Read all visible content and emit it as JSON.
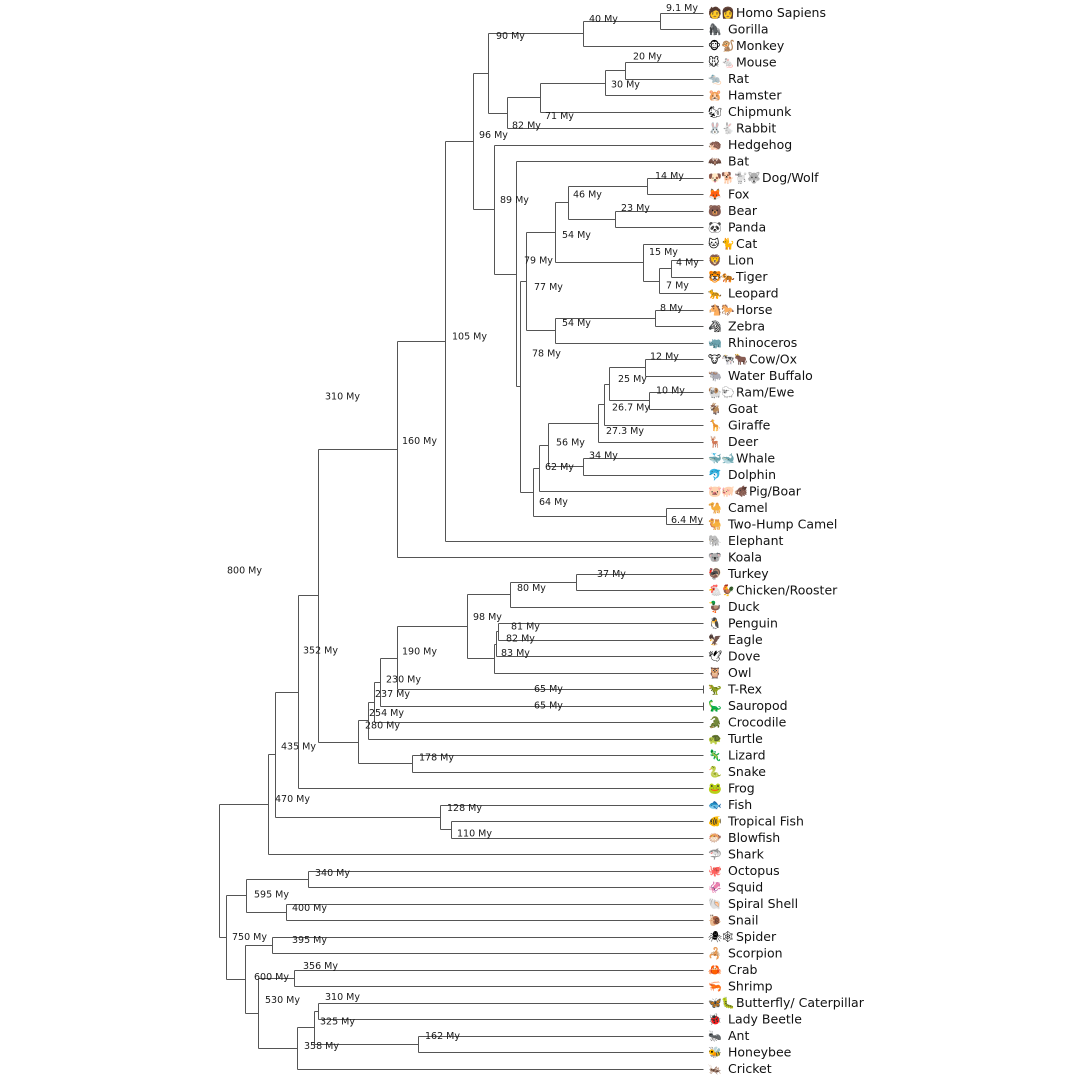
{
  "chart_data": {
    "type": "tree",
    "units": "My",
    "leaves": [
      {
        "id": "homo",
        "label": "Homo Sapiens",
        "icons": [
          "🧑",
          "👩"
        ]
      },
      {
        "id": "gorilla",
        "label": "Gorilla",
        "icons": [
          "🦍"
        ]
      },
      {
        "id": "monkey",
        "label": "Monkey",
        "icons": [
          "🐵",
          "🐒"
        ]
      },
      {
        "id": "mouse",
        "label": "Mouse",
        "icons": [
          "🐭",
          "🐁"
        ]
      },
      {
        "id": "rat",
        "label": "Rat",
        "icons": [
          "🐀"
        ]
      },
      {
        "id": "hamster",
        "label": "Hamster",
        "icons": [
          "🐹"
        ]
      },
      {
        "id": "chipmunk",
        "label": "Chipmunk",
        "icons": [
          "🐿"
        ]
      },
      {
        "id": "rabbit",
        "label": "Rabbit",
        "icons": [
          "🐰",
          "🐇"
        ]
      },
      {
        "id": "hedgehog",
        "label": "Hedgehog",
        "icons": [
          "🦔"
        ]
      },
      {
        "id": "bat",
        "label": "Bat",
        "icons": [
          "🦇"
        ]
      },
      {
        "id": "dog",
        "label": "Dog/Wolf",
        "icons": [
          "🐶",
          "🐕",
          "🐩",
          "🐺"
        ]
      },
      {
        "id": "fox",
        "label": "Fox",
        "icons": [
          "🦊"
        ]
      },
      {
        "id": "bear",
        "label": "Bear",
        "icons": [
          "🐻"
        ]
      },
      {
        "id": "panda",
        "label": "Panda",
        "icons": [
          "🐼"
        ]
      },
      {
        "id": "cat",
        "label": "Cat",
        "icons": [
          "🐱",
          "🐈"
        ]
      },
      {
        "id": "lion",
        "label": "Lion",
        "icons": [
          "🦁"
        ]
      },
      {
        "id": "tiger",
        "label": "Tiger",
        "icons": [
          "🐯",
          "🐅"
        ]
      },
      {
        "id": "leopard",
        "label": "Leopard",
        "icons": [
          "🐆"
        ]
      },
      {
        "id": "horse",
        "label": "Horse",
        "icons": [
          "🐴",
          "🐎"
        ]
      },
      {
        "id": "zebra",
        "label": "Zebra",
        "icons": [
          "🦓"
        ]
      },
      {
        "id": "rhino",
        "label": "Rhinoceros",
        "icons": [
          "🦏"
        ]
      },
      {
        "id": "cow",
        "label": "Cow/Ox",
        "icons": [
          "🐮",
          "🐄",
          "🐂"
        ]
      },
      {
        "id": "buffalo",
        "label": "Water Buffalo",
        "icons": [
          "🐃"
        ]
      },
      {
        "id": "ram",
        "label": "Ram/Ewe",
        "icons": [
          "🐏",
          "🐑"
        ]
      },
      {
        "id": "goat",
        "label": "Goat",
        "icons": [
          "🐐"
        ]
      },
      {
        "id": "giraffe",
        "label": "Giraffe",
        "icons": [
          "🦒"
        ]
      },
      {
        "id": "deer",
        "label": "Deer",
        "icons": [
          "🦌"
        ]
      },
      {
        "id": "whale",
        "label": "Whale",
        "icons": [
          "🐳",
          "🐋"
        ]
      },
      {
        "id": "dolphin",
        "label": "Dolphin",
        "icons": [
          "🐬"
        ]
      },
      {
        "id": "pig",
        "label": "Pig/Boar",
        "icons": [
          "🐷",
          "🐖",
          "🐗"
        ]
      },
      {
        "id": "camel",
        "label": "Camel",
        "icons": [
          "🐪"
        ]
      },
      {
        "id": "camel2",
        "label": "Two-Hump Camel",
        "icons": [
          "🐫"
        ]
      },
      {
        "id": "elephant",
        "label": "Elephant",
        "icons": [
          "🐘"
        ]
      },
      {
        "id": "koala",
        "label": "Koala",
        "icons": [
          "🐨"
        ]
      },
      {
        "id": "turkey",
        "label": "Turkey",
        "icons": [
          "🦃"
        ]
      },
      {
        "id": "chicken",
        "label": "Chicken/Rooster",
        "icons": [
          "🐔",
          "🐓"
        ]
      },
      {
        "id": "duck",
        "label": "Duck",
        "icons": [
          "🦆"
        ]
      },
      {
        "id": "penguin",
        "label": "Penguin",
        "icons": [
          "🐧"
        ]
      },
      {
        "id": "eagle",
        "label": "Eagle",
        "icons": [
          "🦅"
        ]
      },
      {
        "id": "dove",
        "label": "Dove",
        "icons": [
          "🕊"
        ]
      },
      {
        "id": "owl",
        "label": "Owl",
        "icons": [
          "🦉"
        ]
      },
      {
        "id": "trex",
        "label": "T-Rex",
        "icons": [
          "🦖"
        ]
      },
      {
        "id": "sauropod",
        "label": "Sauropod",
        "icons": [
          "🦕"
        ]
      },
      {
        "id": "croc",
        "label": "Crocodile",
        "icons": [
          "🐊"
        ]
      },
      {
        "id": "turtle",
        "label": "Turtle",
        "icons": [
          "🐢"
        ]
      },
      {
        "id": "lizard",
        "label": "Lizard",
        "icons": [
          "🦎"
        ]
      },
      {
        "id": "snake",
        "label": "Snake",
        "icons": [
          "🐍"
        ]
      },
      {
        "id": "frog",
        "label": "Frog",
        "icons": [
          "🐸"
        ]
      },
      {
        "id": "fish",
        "label": "Fish",
        "icons": [
          "🐟"
        ]
      },
      {
        "id": "tropfish",
        "label": "Tropical Fish",
        "icons": [
          "🐠"
        ]
      },
      {
        "id": "blowfish",
        "label": "Blowfish",
        "icons": [
          "🐡"
        ]
      },
      {
        "id": "shark",
        "label": "Shark",
        "icons": [
          "🦈"
        ]
      },
      {
        "id": "octopus",
        "label": "Octopus",
        "icons": [
          "🐙"
        ]
      },
      {
        "id": "squid",
        "label": "Squid",
        "icons": [
          "🦑"
        ]
      },
      {
        "id": "shell",
        "label": "Spiral Shell",
        "icons": [
          "🐚"
        ]
      },
      {
        "id": "snail",
        "label": "Snail",
        "icons": [
          "🐌"
        ]
      },
      {
        "id": "spider",
        "label": "Spider",
        "icons": [
          "🕷",
          "🕸"
        ]
      },
      {
        "id": "scorpion",
        "label": "Scorpion",
        "icons": [
          "🦂"
        ]
      },
      {
        "id": "crab",
        "label": "Crab",
        "icons": [
          "🦀"
        ]
      },
      {
        "id": "shrimp",
        "label": "Shrimp",
        "icons": [
          "🦐"
        ]
      },
      {
        "id": "butterfly",
        "label": "Butterfly/ Caterpillar",
        "icons": [
          "🦋",
          "🐛"
        ]
      },
      {
        "id": "ladybeetle",
        "label": "Lady Beetle",
        "icons": [
          "🐞"
        ]
      },
      {
        "id": "ant",
        "label": "Ant",
        "icons": [
          "🐜"
        ]
      },
      {
        "id": "honeybee",
        "label": "Honeybee",
        "icons": [
          "🐝"
        ]
      },
      {
        "id": "cricket",
        "label": "Cricket",
        "icons": [
          "🦗"
        ]
      }
    ],
    "nodes": [
      {
        "id": "n_9_1",
        "age": "9.1 My",
        "children": [
          "homo",
          "gorilla"
        ]
      },
      {
        "id": "n_40",
        "age": "40 My",
        "children": [
          "n_9_1",
          "monkey"
        ]
      },
      {
        "id": "n_20",
        "age": "20 My",
        "children": [
          "mouse",
          "rat"
        ]
      },
      {
        "id": "n_30",
        "age": "30 My",
        "children": [
          "n_20",
          "hamster"
        ]
      },
      {
        "id": "n_71",
        "age": "71 My",
        "children": [
          "n_30",
          "chipmunk"
        ]
      },
      {
        "id": "n_82",
        "age": "82 My",
        "children": [
          "n_71",
          "rabbit"
        ]
      },
      {
        "id": "n_90",
        "age": "90 My",
        "children": [
          "n_40",
          "n_82"
        ]
      },
      {
        "id": "n_14",
        "age": "14 My",
        "children": [
          "dog",
          "fox"
        ]
      },
      {
        "id": "n_23",
        "age": "23 My",
        "children": [
          "bear",
          "panda"
        ]
      },
      {
        "id": "n_46",
        "age": "46 My",
        "children": [
          "n_14",
          "n_23"
        ]
      },
      {
        "id": "n_4",
        "age": "4 My",
        "children": [
          "lion",
          "tiger"
        ]
      },
      {
        "id": "n_7",
        "age": "7 My",
        "children": [
          "n_4",
          "leopard"
        ]
      },
      {
        "id": "n_15",
        "age": "15 My",
        "children": [
          "cat",
          "n_7"
        ]
      },
      {
        "id": "n_54a",
        "age": "54 My",
        "children": [
          "n_46",
          "n_15"
        ]
      },
      {
        "id": "n_8",
        "age": "8 My",
        "children": [
          "horse",
          "zebra"
        ]
      },
      {
        "id": "n_54b",
        "age": "54 My",
        "children": [
          "n_8",
          "rhino"
        ]
      },
      {
        "id": "n_77",
        "age": "77 My",
        "children": [
          "n_54a",
          "n_54b"
        ]
      },
      {
        "id": "n_12",
        "age": "12 My",
        "children": [
          "cow",
          "buffalo"
        ]
      },
      {
        "id": "n_10",
        "age": "10 My",
        "children": [
          "ram",
          "goat"
        ]
      },
      {
        "id": "n_25",
        "age": "25 My",
        "children": [
          "n_12",
          "n_10"
        ]
      },
      {
        "id": "n_26_7",
        "age": "26.7 My",
        "children": [
          "n_25",
          "giraffe"
        ]
      },
      {
        "id": "n_27_3",
        "age": "27.3 My",
        "children": [
          "n_26_7",
          "deer"
        ]
      },
      {
        "id": "n_34",
        "age": "34 My",
        "children": [
          "whale",
          "dolphin"
        ]
      },
      {
        "id": "n_56",
        "age": "56 My",
        "children": [
          "n_27_3",
          "n_34"
        ]
      },
      {
        "id": "n_62",
        "age": "62 My",
        "children": [
          "n_56",
          "pig"
        ]
      },
      {
        "id": "n_6_4",
        "age": "6.4 My",
        "children": [
          "camel",
          "camel2"
        ]
      },
      {
        "id": "n_64",
        "age": "64 My",
        "children": [
          "n_62",
          "n_6_4"
        ]
      },
      {
        "id": "n_78",
        "age": "78 My",
        "children": [
          "n_77",
          "n_64"
        ]
      },
      {
        "id": "n_79",
        "age": "79 My",
        "children": [
          "bat",
          "n_78"
        ]
      },
      {
        "id": "n_89",
        "age": "89 My",
        "children": [
          "hedgehog",
          "n_79"
        ]
      },
      {
        "id": "n_96",
        "age": "96 My",
        "children": [
          "n_90",
          "n_89"
        ]
      },
      {
        "id": "n_105",
        "age": "105 My",
        "children": [
          "n_96",
          "elephant"
        ]
      },
      {
        "id": "n_160",
        "age": "160 My",
        "children": [
          "n_105",
          "koala"
        ]
      },
      {
        "id": "n_37",
        "age": "37 My",
        "children": [
          "turkey",
          "chicken"
        ]
      },
      {
        "id": "n_80",
        "age": "80 My",
        "children": [
          "n_37",
          "duck"
        ]
      },
      {
        "id": "n_81",
        "age": "81 My",
        "children": [
          "penguin",
          "eagle"
        ]
      },
      {
        "id": "n_82b",
        "age": "82 My",
        "children": [
          "n_81",
          "dove"
        ]
      },
      {
        "id": "n_83",
        "age": "83 My",
        "children": [
          "n_82b",
          "owl"
        ]
      },
      {
        "id": "n_98",
        "age": "98 My",
        "children": [
          "n_80",
          "n_83"
        ]
      },
      {
        "id": "n_65a",
        "age": "65 My",
        "children": [
          "trex"
        ]
      },
      {
        "id": "n_190",
        "age": "190 My",
        "children": [
          "n_98",
          "n_65a"
        ]
      },
      {
        "id": "n_65b",
        "age": "65 My",
        "children": [
          "sauropod"
        ]
      },
      {
        "id": "n_230",
        "age": "230 My",
        "children": [
          "n_190",
          "n_65b"
        ]
      },
      {
        "id": "n_237",
        "age": "237 My",
        "children": [
          "n_230",
          "croc"
        ]
      },
      {
        "id": "n_254",
        "age": "254 My",
        "children": [
          "n_237",
          "turtle"
        ]
      },
      {
        "id": "n_178",
        "age": "178 My",
        "children": [
          "lizard",
          "snake"
        ]
      },
      {
        "id": "n_280",
        "age": "280 My",
        "children": [
          "n_254",
          "n_178"
        ]
      },
      {
        "id": "n_352",
        "age": "352 My",
        "children": [
          "n_280"
        ]
      },
      {
        "id": "n_310",
        "age": "310 My",
        "children": [
          "n_160",
          "n_352"
        ]
      },
      {
        "id": "n_frog",
        "age": "",
        "children": [
          "n_310",
          "frog"
        ]
      },
      {
        "id": "n_110",
        "age": "110 My",
        "children": [
          "tropfish",
          "blowfish"
        ]
      },
      {
        "id": "n_128",
        "age": "128 My",
        "children": [
          "fish",
          "n_110"
        ]
      },
      {
        "id": "n_435",
        "age": "435 My",
        "children": [
          "n_frog",
          "n_128"
        ]
      },
      {
        "id": "n_470",
        "age": "470 My",
        "children": [
          "n_435",
          "shark"
        ]
      },
      {
        "id": "n_340",
        "age": "340 My",
        "children": [
          "octopus",
          "squid"
        ]
      },
      {
        "id": "n_400",
        "age": "400 My",
        "children": [
          "shell",
          "snail"
        ]
      },
      {
        "id": "n_595",
        "age": "595 My",
        "children": [
          "n_340",
          "n_400"
        ]
      },
      {
        "id": "n_395",
        "age": "395 My",
        "children": [
          "spider",
          "scorpion"
        ]
      },
      {
        "id": "n_356",
        "age": "356 My",
        "children": [
          "crab",
          "shrimp"
        ]
      },
      {
        "id": "n_310b",
        "age": "310 My",
        "children": [
          "butterfly",
          "ladybeetle"
        ]
      },
      {
        "id": "n_162",
        "age": "162 My",
        "children": [
          "ant",
          "honeybee"
        ]
      },
      {
        "id": "n_325",
        "age": "325 My",
        "children": [
          "n_310b",
          "n_162"
        ]
      },
      {
        "id": "n_358",
        "age": "358 My",
        "children": [
          "n_325",
          "cricket"
        ]
      },
      {
        "id": "n_530",
        "age": "530 My",
        "children": [
          "n_356",
          "n_358"
        ]
      },
      {
        "id": "n_600",
        "age": "600 My",
        "children": [
          "n_395",
          "n_530"
        ]
      },
      {
        "id": "n_750",
        "age": "750 My",
        "children": [
          "n_595",
          "n_600"
        ]
      },
      {
        "id": "n_800",
        "age": "800 My",
        "children": [
          "n_470",
          "n_750"
        ]
      }
    ]
  }
}
